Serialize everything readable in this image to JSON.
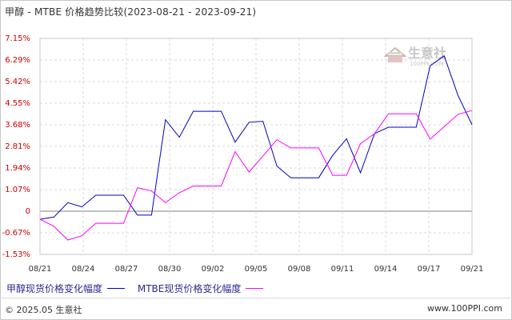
{
  "title": {
    "main": "甲醇 - MTBE 价格趋势比较",
    "range": "(2023-08-21 - 2023-09-21)"
  },
  "colors": {
    "series1": "#0000cc",
    "series2": "#ff00ff",
    "y_label": "#cc0000",
    "grid": "#d8d8d8"
  },
  "watermark": {
    "text": "生意社",
    "sub": "100PPI.COM"
  },
  "footer": {
    "copyright": "© 2025.05 生意社",
    "website": "www.100PPI.com"
  },
  "chart_data": {
    "type": "line",
    "title": "甲醇 - MTBE 价格趋势比较",
    "x_tick_labels": [
      "08/21",
      "08/24",
      "08/27",
      "08/30",
      "09/02",
      "09/05",
      "09/08",
      "09/11",
      "09/14",
      "09/17",
      "09/21"
    ],
    "y_tick_labels": [
      "7.15%",
      "6.29%",
      "5.42%",
      "4.55%",
      "3.68%",
      "2.81%",
      "1.94%",
      "1.07%",
      "0",
      "-0.67%",
      "-1.53%"
    ],
    "ylim": [
      -1.53,
      7.15
    ],
    "grid": true,
    "legend_position": "bottom-left",
    "series": [
      {
        "name": "甲醇现货价格变化幅度",
        "color": "#0000cc",
        "values": [
          -0.12,
          -0.03,
          0.55,
          0.38,
          0.85,
          0.85,
          0.85,
          0.05,
          0.05,
          3.88,
          3.18,
          4.22,
          4.22,
          4.22,
          2.98,
          3.78,
          3.82,
          2.02,
          1.55,
          1.55,
          1.55,
          2.45,
          3.12,
          1.75,
          3.32,
          3.58,
          3.58,
          3.58,
          6.05,
          6.45,
          4.85,
          3.68
        ]
      },
      {
        "name": "MTBE现货价格变化幅度",
        "color": "#ff00ff",
        "values": [
          -0.12,
          -0.4,
          -0.95,
          -0.78,
          -0.28,
          -0.28,
          -0.28,
          1.15,
          1.02,
          0.55,
          0.95,
          1.22,
          1.22,
          1.22,
          2.6,
          1.78,
          2.42,
          3.08,
          2.75,
          2.75,
          2.75,
          1.65,
          1.65,
          2.92,
          3.32,
          4.12,
          4.12,
          4.12,
          3.1,
          3.6,
          4.1,
          4.25
        ]
      }
    ]
  }
}
